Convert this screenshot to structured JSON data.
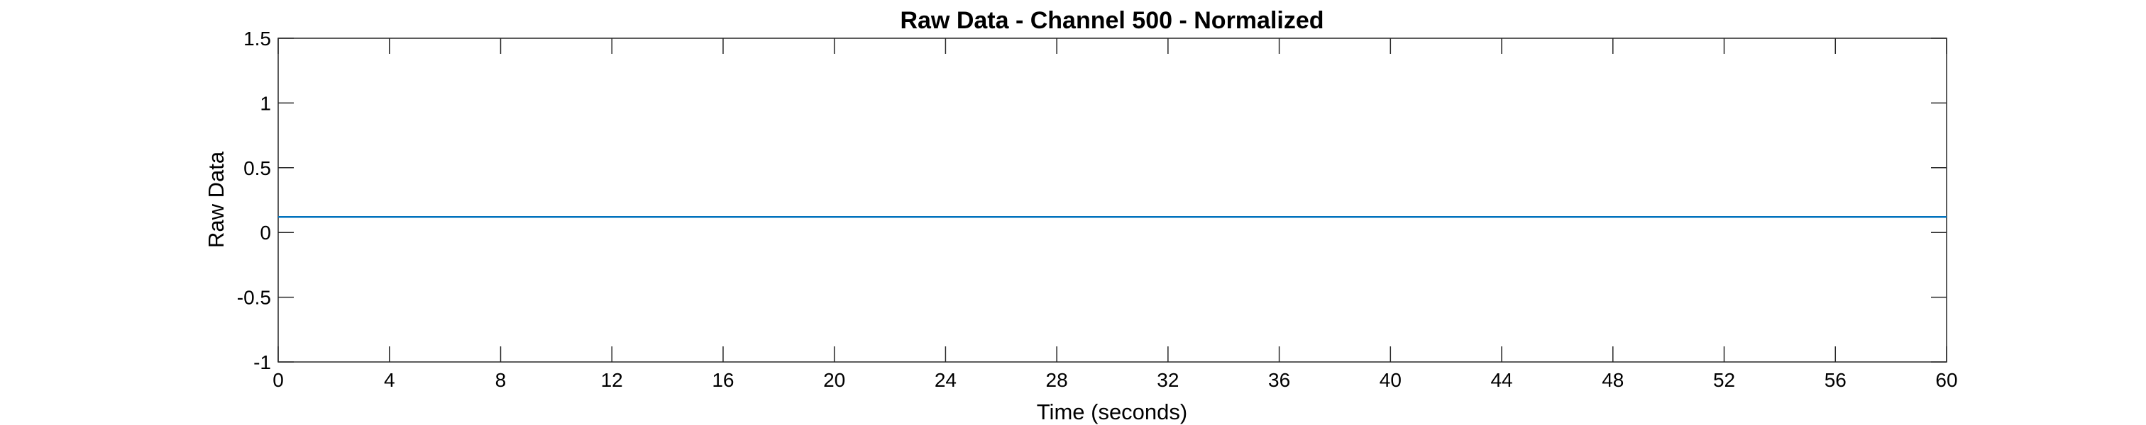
{
  "chart_data": {
    "type": "line",
    "title": "Raw Data - Channel 500 - Normalized",
    "xlabel": "Time (seconds)",
    "ylabel": "Raw Data",
    "xlim": [
      0,
      60
    ],
    "ylim": [
      -1,
      1.5
    ],
    "xticks": [
      0,
      4,
      8,
      12,
      16,
      20,
      24,
      28,
      32,
      36,
      40,
      44,
      48,
      52,
      56,
      60
    ],
    "yticks": [
      -1,
      -0.5,
      0,
      0.5,
      1,
      1.5
    ],
    "xtick_labels": [
      "0",
      "4",
      "8",
      "12",
      "16",
      "20",
      "24",
      "28",
      "32",
      "36",
      "40",
      "44",
      "48",
      "52",
      "56",
      "60"
    ],
    "ytick_labels": [
      "-1",
      "-0.5",
      "0",
      "0.5",
      "1",
      "1.5"
    ],
    "grid": false,
    "legend": "none",
    "series": [
      {
        "color": "#0072BD",
        "x": [
          0,
          60
        ],
        "y": [
          0.12,
          0.12
        ]
      }
    ]
  }
}
